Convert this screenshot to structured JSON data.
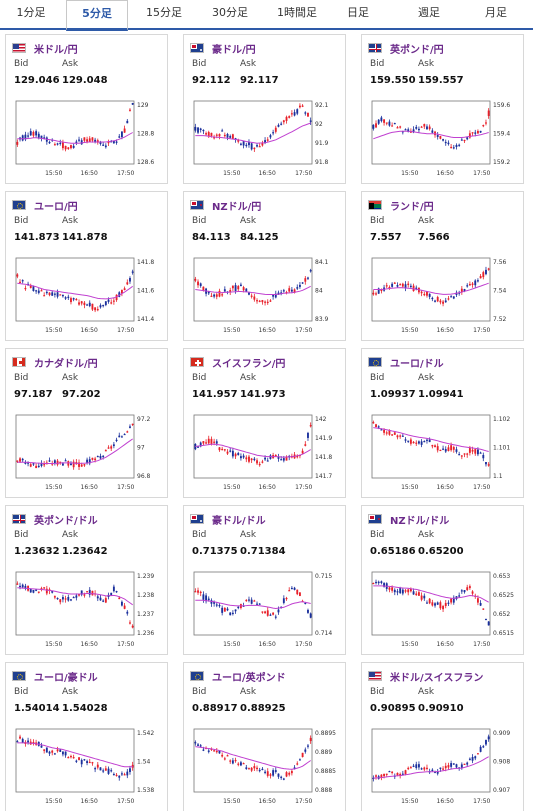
{
  "tabs": [
    {
      "label": "1分足",
      "active": false
    },
    {
      "label": "5分足",
      "active": true
    },
    {
      "label": "15分足",
      "active": false
    },
    {
      "label": "30分足",
      "active": false
    },
    {
      "label": "1時間足",
      "active": false
    },
    {
      "label": "日足",
      "active": false
    },
    {
      "label": "週足",
      "active": false
    },
    {
      "label": "月足",
      "active": false
    }
  ],
  "labels": {
    "bid": "Bid",
    "ask": "Ask"
  },
  "colors": {
    "up": "#e8202a",
    "down": "#1a2f9c",
    "ma": "#c040d0",
    "pair_title": "#6b2a8a",
    "accent": "#2e5aa8"
  },
  "x_ticks": [
    "15:50",
    "16:50",
    "17:50"
  ],
  "cards": [
    {
      "pair": "米ドル/円",
      "flag": "us",
      "bid": "129.046",
      "ask": "129.048",
      "y_ticks": [
        "129",
        "128.8",
        "128.6"
      ],
      "chart_data": {
        "type": "candlestick",
        "trend": [
          0.35,
          0.45,
          0.5,
          0.4,
          0.35,
          0.3,
          0.25,
          0.35,
          0.4,
          0.35,
          0.3,
          0.35,
          0.5,
          0.95
        ],
        "ma": [
          0.4,
          0.4,
          0.42,
          0.4,
          0.38,
          0.35,
          0.33,
          0.33,
          0.35,
          0.35,
          0.35,
          0.37,
          0.42,
          0.5
        ]
      }
    },
    {
      "pair": "豪ドル/円",
      "flag": "au",
      "bid": "92.112",
      "ask": "92.117",
      "y_ticks": [
        "92.1",
        "92",
        "91.9",
        "91.8"
      ],
      "chart_data": {
        "type": "candlestick",
        "trend": [
          0.55,
          0.5,
          0.45,
          0.5,
          0.45,
          0.35,
          0.3,
          0.25,
          0.35,
          0.55,
          0.7,
          0.8,
          0.9,
          0.7
        ],
        "ma": [
          0.45,
          0.45,
          0.43,
          0.42,
          0.4,
          0.38,
          0.35,
          0.33,
          0.34,
          0.38,
          0.45,
          0.52,
          0.6,
          0.65
        ]
      }
    },
    {
      "pair": "英ポンド/円",
      "flag": "gb",
      "bid": "159.550",
      "ask": "159.557",
      "y_ticks": [
        "159.6",
        "159.4",
        "159.2"
      ],
      "chart_data": {
        "type": "candlestick",
        "trend": [
          0.6,
          0.7,
          0.65,
          0.55,
          0.5,
          0.55,
          0.6,
          0.5,
          0.35,
          0.25,
          0.35,
          0.45,
          0.5,
          0.8
        ],
        "ma": [
          0.4,
          0.45,
          0.5,
          0.52,
          0.52,
          0.5,
          0.48,
          0.48,
          0.45,
          0.42,
          0.42,
          0.44,
          0.46,
          0.5
        ]
      }
    },
    {
      "pair": "ユーロ/円",
      "flag": "eu",
      "bid": "141.873",
      "ask": "141.878",
      "y_ticks": [
        "141.8",
        "141.6",
        "141.4"
      ],
      "chart_data": {
        "type": "candlestick",
        "trend": [
          0.7,
          0.55,
          0.5,
          0.45,
          0.45,
          0.4,
          0.35,
          0.3,
          0.25,
          0.2,
          0.3,
          0.35,
          0.5,
          0.75
        ],
        "ma": [
          0.6,
          0.58,
          0.55,
          0.5,
          0.48,
          0.46,
          0.44,
          0.42,
          0.4,
          0.36,
          0.35,
          0.37,
          0.45,
          0.55
        ]
      }
    },
    {
      "pair": "NZドル/円",
      "flag": "nz",
      "bid": "84.113",
      "ask": "84.125",
      "y_ticks": [
        "84.1",
        "84",
        "83.9"
      ],
      "chart_data": {
        "type": "candlestick",
        "trend": [
          0.65,
          0.5,
          0.4,
          0.45,
          0.5,
          0.55,
          0.45,
          0.35,
          0.3,
          0.4,
          0.5,
          0.45,
          0.55,
          0.8
        ],
        "ma": [
          0.5,
          0.48,
          0.46,
          0.45,
          0.46,
          0.47,
          0.46,
          0.44,
          0.42,
          0.42,
          0.44,
          0.45,
          0.48,
          0.55
        ]
      }
    },
    {
      "pair": "ランド/円",
      "flag": "za",
      "bid": "7.557",
      "ask": "7.566",
      "y_ticks": [
        "7.56",
        "7.54",
        "7.52"
      ],
      "chart_data": {
        "type": "candlestick",
        "trend": [
          0.45,
          0.5,
          0.55,
          0.6,
          0.55,
          0.5,
          0.45,
          0.35,
          0.3,
          0.4,
          0.5,
          0.55,
          0.65,
          0.85
        ],
        "ma": [
          0.5,
          0.5,
          0.52,
          0.53,
          0.52,
          0.5,
          0.47,
          0.44,
          0.42,
          0.43,
          0.46,
          0.5,
          0.55,
          0.6
        ]
      }
    },
    {
      "pair": "カナダドル/円",
      "flag": "ca",
      "bid": "97.187",
      "ask": "97.202",
      "y_ticks": [
        "97.2",
        "97",
        "96.8"
      ],
      "chart_data": {
        "type": "candlestick",
        "trend": [
          0.3,
          0.25,
          0.2,
          0.22,
          0.25,
          0.25,
          0.22,
          0.2,
          0.25,
          0.3,
          0.4,
          0.55,
          0.7,
          0.9
        ],
        "ma": [
          0.25,
          0.25,
          0.24,
          0.23,
          0.23,
          0.24,
          0.24,
          0.23,
          0.24,
          0.27,
          0.33,
          0.42,
          0.52,
          0.62
        ]
      }
    },
    {
      "pair": "スイスフラン/円",
      "flag": "ch",
      "bid": "141.957",
      "ask": "141.973",
      "y_ticks": [
        "142",
        "141.9",
        "141.8",
        "141.7"
      ],
      "chart_data": {
        "type": "candlestick",
        "trend": [
          0.5,
          0.55,
          0.6,
          0.45,
          0.4,
          0.35,
          0.3,
          0.25,
          0.3,
          0.35,
          0.3,
          0.35,
          0.4,
          0.8
        ],
        "ma": [
          0.5,
          0.52,
          0.54,
          0.52,
          0.48,
          0.44,
          0.4,
          0.36,
          0.34,
          0.34,
          0.33,
          0.34,
          0.37,
          0.45
        ]
      }
    },
    {
      "pair": "ユーロ/ドル",
      "flag": "eu",
      "bid": "1.09937",
      "ask": "1.09941",
      "y_ticks": [
        "1.102",
        "1.101",
        "1.1"
      ],
      "chart_data": {
        "type": "candlestick",
        "trend": [
          0.85,
          0.75,
          0.7,
          0.65,
          0.6,
          0.55,
          0.6,
          0.5,
          0.45,
          0.5,
          0.35,
          0.45,
          0.4,
          0.2
        ],
        "ma": [
          0.8,
          0.78,
          0.75,
          0.72,
          0.68,
          0.65,
          0.63,
          0.6,
          0.56,
          0.53,
          0.5,
          0.48,
          0.46,
          0.42
        ]
      }
    },
    {
      "pair": "英ポンド/ドル",
      "flag": "gb",
      "bid": "1.23632",
      "ask": "1.23642",
      "y_ticks": [
        "1.239",
        "1.238",
        "1.237",
        "1.236"
      ],
      "chart_data": {
        "type": "candlestick",
        "trend": [
          0.8,
          0.75,
          0.7,
          0.72,
          0.65,
          0.55,
          0.6,
          0.65,
          0.7,
          0.6,
          0.55,
          0.75,
          0.45,
          0.15
        ],
        "ma": [
          0.75,
          0.74,
          0.73,
          0.72,
          0.7,
          0.67,
          0.65,
          0.65,
          0.66,
          0.65,
          0.62,
          0.63,
          0.58,
          0.48
        ]
      }
    },
    {
      "pair": "豪ドル/ドル",
      "flag": "au",
      "bid": "0.71375",
      "ask": "0.71384",
      "y_ticks": [
        "0.715",
        "0.714"
      ],
      "chart_data": {
        "type": "candlestick",
        "trend": [
          0.7,
          0.6,
          0.5,
          0.4,
          0.35,
          0.45,
          0.55,
          0.5,
          0.35,
          0.3,
          0.55,
          0.75,
          0.6,
          0.3
        ],
        "ma": [
          0.55,
          0.55,
          0.53,
          0.5,
          0.47,
          0.46,
          0.47,
          0.47,
          0.45,
          0.42,
          0.44,
          0.5,
          0.53,
          0.5
        ]
      }
    },
    {
      "pair": "NZドル/ドル",
      "flag": "nz",
      "bid": "0.65186",
      "ask": "0.65200",
      "y_ticks": [
        "0.653",
        "0.6525",
        "0.652",
        "0.6515"
      ],
      "chart_data": {
        "type": "candlestick",
        "trend": [
          0.85,
          0.8,
          0.75,
          0.7,
          0.72,
          0.65,
          0.55,
          0.5,
          0.45,
          0.55,
          0.7,
          0.75,
          0.5,
          0.2
        ],
        "ma": [
          0.78,
          0.78,
          0.77,
          0.75,
          0.74,
          0.72,
          0.68,
          0.64,
          0.6,
          0.58,
          0.6,
          0.63,
          0.6,
          0.52
        ]
      }
    },
    {
      "pair": "ユーロ/豪ドル",
      "flag": "eu",
      "bid": "1.54014",
      "ask": "1.54028",
      "y_ticks": [
        "1.542",
        "1.54",
        "1.538"
      ],
      "chart_data": {
        "type": "candlestick",
        "trend": [
          0.85,
          0.8,
          0.78,
          0.7,
          0.6,
          0.65,
          0.55,
          0.5,
          0.45,
          0.4,
          0.35,
          0.3,
          0.25,
          0.4
        ],
        "ma": [
          0.78,
          0.78,
          0.77,
          0.74,
          0.7,
          0.68,
          0.64,
          0.6,
          0.56,
          0.52,
          0.48,
          0.44,
          0.4,
          0.4
        ]
      }
    },
    {
      "pair": "ユーロ/英ポンド",
      "flag": "eu",
      "bid": "0.88917",
      "ask": "0.88925",
      "y_ticks": [
        "0.8895",
        "0.889",
        "0.8885",
        "0.888"
      ],
      "chart_data": {
        "type": "candlestick",
        "trend": [
          0.75,
          0.7,
          0.65,
          0.6,
          0.5,
          0.45,
          0.4,
          0.35,
          0.3,
          0.3,
          0.25,
          0.35,
          0.55,
          0.85
        ],
        "ma": [
          0.72,
          0.7,
          0.68,
          0.65,
          0.6,
          0.56,
          0.52,
          0.48,
          0.44,
          0.4,
          0.37,
          0.36,
          0.4,
          0.5
        ]
      }
    },
    {
      "pair": "米ドル/スイスフラン",
      "flag": "us",
      "bid": "0.90895",
      "ask": "0.90910",
      "y_ticks": [
        "0.909",
        "0.908",
        "0.907"
      ],
      "chart_data": {
        "type": "candlestick",
        "trend": [
          0.2,
          0.25,
          0.3,
          0.28,
          0.35,
          0.4,
          0.35,
          0.3,
          0.38,
          0.45,
          0.4,
          0.5,
          0.65,
          0.85
        ],
        "ma": [
          0.22,
          0.23,
          0.25,
          0.26,
          0.28,
          0.31,
          0.32,
          0.32,
          0.34,
          0.37,
          0.38,
          0.42,
          0.48,
          0.56
        ]
      }
    }
  ]
}
